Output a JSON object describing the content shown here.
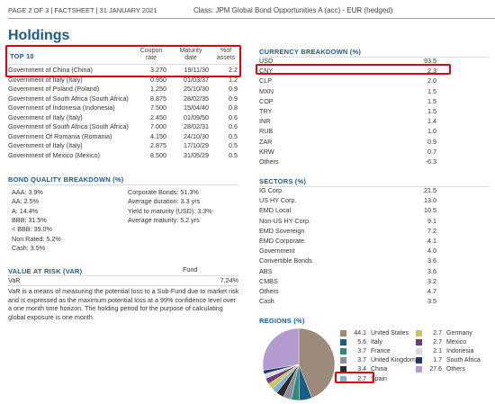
{
  "header": {
    "page": "PAGE 2 OF 3 | FACTSHEET | 31 JANUARY 2021",
    "class": "Class: JPM Global Bond Opportunities A (acc) - EUR (hedged)"
  },
  "holdings": {
    "title": "Holdings",
    "top10_label": "TOP 10",
    "col_coupon": "Coupon rate",
    "col_maturity": "Maturity date",
    "col_assets": "%of assets",
    "rows": [
      {
        "name": "Government of China (China)",
        "coupon": "3.270",
        "maturity": "19/11/30",
        "pct": "2.2"
      },
      {
        "name": "Government of Italy (Italy)",
        "coupon": "0.950",
        "maturity": "01/03/37",
        "pct": "1.2"
      },
      {
        "name": "Government of Poland (Poland)",
        "coupon": "1.250",
        "maturity": "25/10/30",
        "pct": "0.9"
      },
      {
        "name": "Government of South Africa (South Africa)",
        "coupon": "8.875",
        "maturity": "28/02/35",
        "pct": "0.9"
      },
      {
        "name": "Government of Indonesia (Indonesia)",
        "coupon": "7.500",
        "maturity": "15/04/40",
        "pct": "0.8"
      },
      {
        "name": "Government of Italy (Italy)",
        "coupon": "2.450",
        "maturity": "01/09/50",
        "pct": "0.6"
      },
      {
        "name": "Government of South Africa (South Africa)",
        "coupon": "7.000",
        "maturity": "28/02/31",
        "pct": "0.6"
      },
      {
        "name": "Government Of Romania (Romania)",
        "coupon": "4.150",
        "maturity": "24/10/30",
        "pct": "0.5"
      },
      {
        "name": "Government of Italy (Italy)",
        "coupon": "2.875",
        "maturity": "17/10/29",
        "pct": "0.5"
      },
      {
        "name": "Government of Mexico (Mexico)",
        "coupon": "8.500",
        "maturity": "31/05/29",
        "pct": "0.5"
      }
    ]
  },
  "bond_quality": {
    "title": "BOND QUALITY BREAKDOWN (%)",
    "left": [
      "AAA: 3.9%",
      "AA: 2.5%",
      "A: 14.4%",
      "BBB: 31.5%",
      "< BBB: 39.0%",
      "Non Rated: 5.2%",
      "Cash: 3.5%"
    ],
    "right": [
      "Corporate Bonds: 51.3%",
      "Average duration: 3.3 yrs",
      "Yield to maturity (USD): 3.3%",
      "Average maturity: 5.2 yrs"
    ]
  },
  "var": {
    "title": "VALUE AT RISK (VAR)",
    "col": "Fund",
    "label": "VaR",
    "value": "7.24%",
    "lines": [
      "VaR is a means of measuring the potential loss to a Sub-Fund due to market risk",
      "and is expressed as the maximum potential loss at a 99% confidence level over",
      "a one month time horizon. The holding period for the purpose of calculating",
      "global exposure is one month."
    ]
  },
  "currency": {
    "title": "CURRENCY BREAKDOWN (%)",
    "rows": [
      {
        "k": "USD",
        "v": "93.5"
      },
      {
        "k": "CNY",
        "v": "2.3"
      },
      {
        "k": "CLP",
        "v": "2.0"
      },
      {
        "k": "MXN",
        "v": "1.5"
      },
      {
        "k": "COP",
        "v": "1.5"
      },
      {
        "k": "TRY",
        "v": "1.5"
      },
      {
        "k": "INR",
        "v": "1.4"
      },
      {
        "k": "RUB",
        "v": "1.0"
      },
      {
        "k": "ZAR",
        "v": "0.9"
      },
      {
        "k": "KRW",
        "v": "0.7"
      },
      {
        "k": "Others",
        "v": "-6.3"
      }
    ]
  },
  "sectors": {
    "title": "SECTORS (%)",
    "rows": [
      {
        "k": "IG Corp.",
        "v": "21.5"
      },
      {
        "k": "US HY Corp.",
        "v": "13.0"
      },
      {
        "k": "EMD Local",
        "v": "10.5"
      },
      {
        "k": "Non-US HY Corp.",
        "v": "9.1"
      },
      {
        "k": "EMD Sovereign",
        "v": "7.2"
      },
      {
        "k": "EMD Corporate",
        "v": "4.1"
      },
      {
        "k": "Government",
        "v": "4.0"
      },
      {
        "k": "Convertible Bonds",
        "v": "3.6"
      },
      {
        "k": "ABS",
        "v": "3.6"
      },
      {
        "k": "CMBS",
        "v": "3.2"
      },
      {
        "k": "Others",
        "v": "4.7"
      },
      {
        "k": "Cash",
        "v": "3.5"
      }
    ]
  },
  "regions": {
    "title": "REGIONS (%)",
    "legend": [
      {
        "v": "44.1",
        "k": "United States",
        "color": "#9c8b7a"
      },
      {
        "v": "5.6",
        "k": "Italy",
        "color": "#1a5e87"
      },
      {
        "v": "3.7",
        "k": "France",
        "color": "#2f8a78"
      },
      {
        "v": "3.7",
        "k": "United Kingdom",
        "color": "#8c8f96"
      },
      {
        "v": "3.4",
        "k": "China",
        "color": "#2b2b2b"
      },
      {
        "v": "2.7",
        "k": "Spain",
        "color": "#7ab3d6"
      },
      {
        "v": "2.7",
        "k": "Germany",
        "color": "#c9c65f"
      },
      {
        "v": "2.7",
        "k": "Mexico",
        "color": "#6c3d7a"
      },
      {
        "v": "2.1",
        "k": "Indonesia",
        "color": "#d9d9d9"
      },
      {
        "v": "1.7",
        "k": "South Africa",
        "color": "#20386b"
      },
      {
        "v": "27.6",
        "k": "Others",
        "color": "#b39bcf"
      }
    ]
  },
  "chart_data": {
    "type": "pie",
    "labels": [
      "United States",
      "Italy",
      "France",
      "United Kingdom",
      "China",
      "Spain",
      "Germany",
      "Mexico",
      "Indonesia",
      "South Africa",
      "Others"
    ],
    "values": [
      44.1,
      5.6,
      3.7,
      3.7,
      3.4,
      2.7,
      2.7,
      2.7,
      2.1,
      1.7,
      27.6
    ],
    "colors": [
      "#9c8b7a",
      "#1a5e87",
      "#2f8a78",
      "#8c8f96",
      "#2b2b2b",
      "#7ab3d6",
      "#c9c65f",
      "#6c3d7a",
      "#d9d9d9",
      "#20386b",
      "#b39bcf"
    ]
  }
}
